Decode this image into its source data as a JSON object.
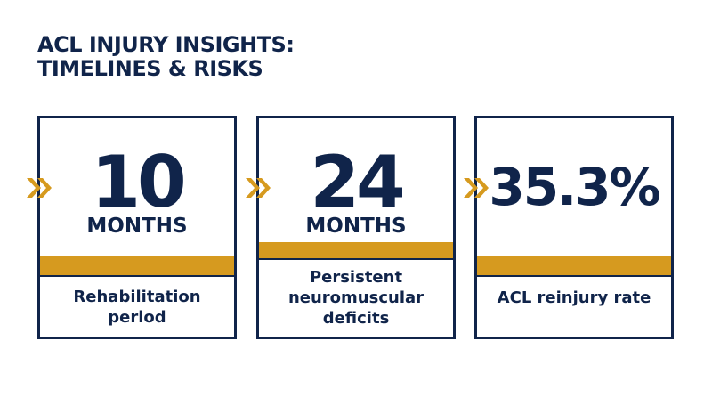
{
  "title": [
    "ACL INJURY INSIGHTS:",
    "TIMELINES & RISKS"
  ],
  "cards": [
    {
      "value": "10",
      "unit": "MONTHS",
      "description": [
        "Rehabilitation",
        "period"
      ]
    },
    {
      "value": "24",
      "unit": "MONTHS",
      "description": [
        "Persistent",
        "neuromuscular",
        "deficits"
      ]
    },
    {
      "value": "35.3%",
      "description": [
        "ACL reinjury rate"
      ]
    }
  ]
}
